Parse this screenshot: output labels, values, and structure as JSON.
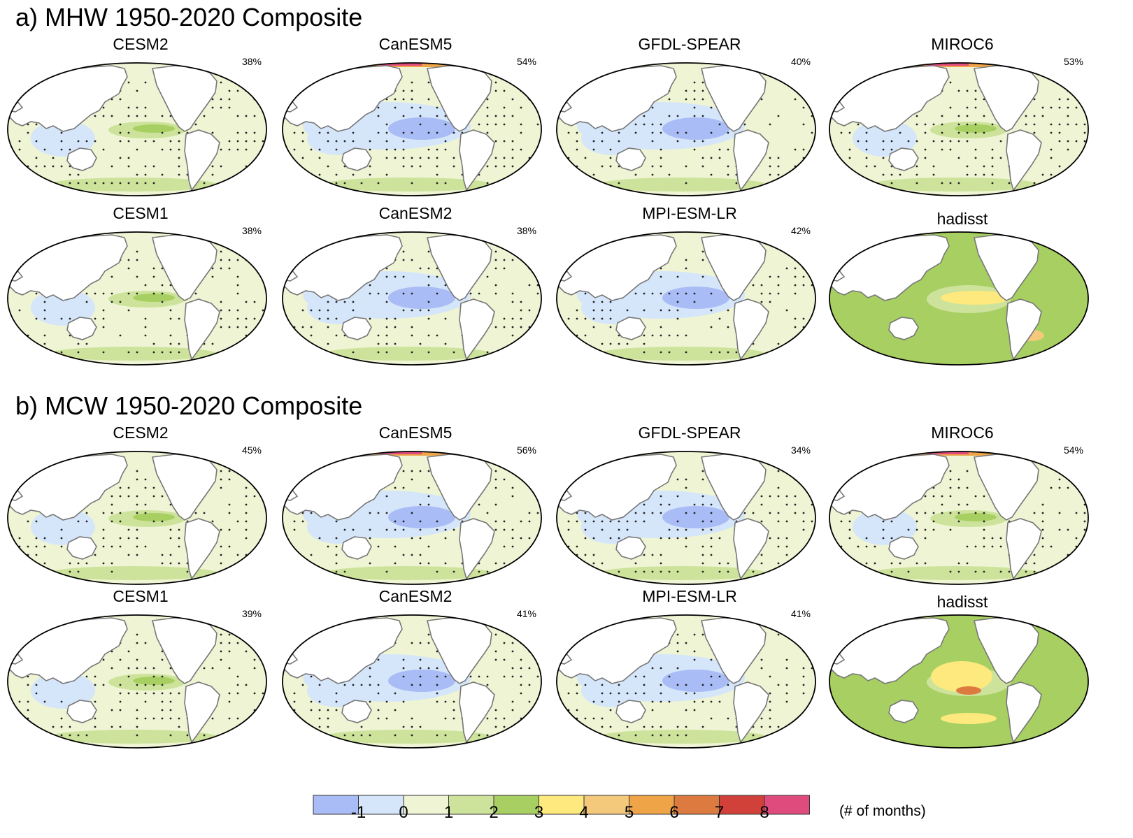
{
  "sections": [
    {
      "title": "a) MHW 1950-2020 Composite",
      "panels": [
        {
          "model": "CESM2",
          "pct": "38%",
          "style": "model-green"
        },
        {
          "model": "CanESM5",
          "pct": "54%",
          "style": "model-blue-hot"
        },
        {
          "model": "GFDL-SPEAR",
          "pct": "40%",
          "style": "model-blue"
        },
        {
          "model": "MIROC6",
          "pct": "53%",
          "style": "model-green-hot"
        },
        {
          "model": "CESM1",
          "pct": "38%",
          "style": "model-green"
        },
        {
          "model": "CanESM2",
          "pct": "38%",
          "style": "model-blue"
        },
        {
          "model": "MPI-ESM-LR",
          "pct": "42%",
          "style": "model-blue"
        },
        {
          "model": "hadisst",
          "pct": "",
          "style": "obs-pacific"
        }
      ]
    },
    {
      "title": "b) MCW 1950-2020 Composite",
      "panels": [
        {
          "model": "CESM2",
          "pct": "45%",
          "style": "model-green"
        },
        {
          "model": "CanESM5",
          "pct": "56%",
          "style": "model-blue-hot"
        },
        {
          "model": "GFDL-SPEAR",
          "pct": "34%",
          "style": "model-blue"
        },
        {
          "model": "MIROC6",
          "pct": "54%",
          "style": "model-green-hot"
        },
        {
          "model": "CESM1",
          "pct": "39%",
          "style": "model-green"
        },
        {
          "model": "CanESM2",
          "pct": "41%",
          "style": "model-blue"
        },
        {
          "model": "MPI-ESM-LR",
          "pct": "41%",
          "style": "model-blue"
        },
        {
          "model": "hadisst",
          "pct": "",
          "style": "obs-south"
        }
      ]
    }
  ],
  "colorbar": {
    "colors": [
      "#a9bcf5",
      "#d5e6fa",
      "#eef4d4",
      "#cde39b",
      "#a8cf62",
      "#fde97d",
      "#f5c97c",
      "#eea447",
      "#dd7a3f",
      "#d1413a",
      "#e04b7e"
    ],
    "tick_labels": [
      "-1",
      "0",
      "1",
      "2",
      "3",
      "4",
      "5",
      "6",
      "7",
      "8"
    ],
    "unit_label": "(# of months)"
  }
}
